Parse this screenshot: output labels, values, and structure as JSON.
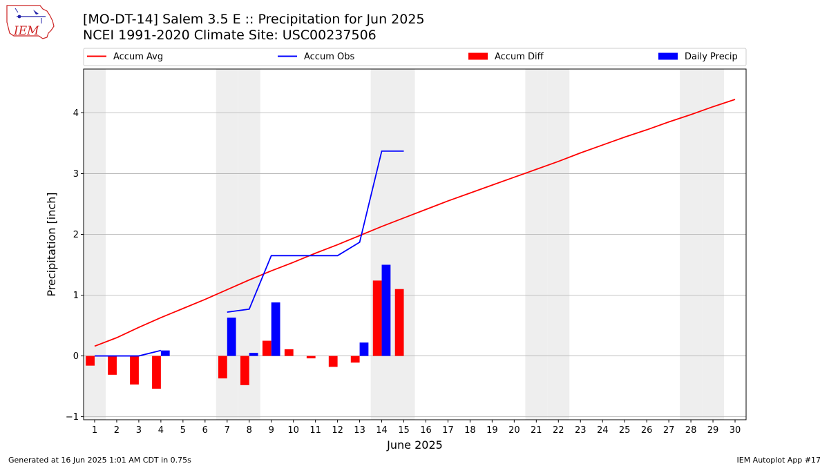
{
  "header": {
    "title_line1": "[MO-DT-14] Salem 3.5 E :: Precipitation for Jun 2025",
    "title_line2": "NCEI 1991-2020 Climate Site: USC00237506"
  },
  "logo": {
    "text": "IEM",
    "color": "#cc2222"
  },
  "footer": {
    "generated": "Generated at 16 Jun 2025 1:01 AM CDT in 0.75s",
    "app": "IEM Autoplot App #17"
  },
  "chart_data": {
    "type": "bar",
    "xlabel": "June 2025",
    "ylabel": "Precipitation [inch]",
    "xlim": [
      0.5,
      30.5
    ],
    "ylim": [
      -1.05,
      4.72
    ],
    "days": [
      1,
      2,
      3,
      4,
      5,
      6,
      7,
      8,
      9,
      10,
      11,
      12,
      13,
      14,
      15,
      16,
      17,
      18,
      19,
      20,
      21,
      22,
      23,
      24,
      25,
      26,
      27,
      28,
      29,
      30
    ],
    "yticks": [
      -1,
      0,
      1,
      2,
      3,
      4
    ],
    "weekend_days": [
      1,
      7,
      8,
      14,
      15,
      21,
      22,
      28,
      29
    ],
    "grid": "horizontal",
    "legend_placement": "top",
    "legend": [
      "Accum Avg",
      "Accum Obs",
      "Accum Diff",
      "Daily Precip"
    ],
    "colors": {
      "avg": "#ff0000",
      "obs": "#0000ff",
      "diff": "#ff0000",
      "daily": "#0000ff",
      "weekend": "#eeeeee",
      "grid": "#b0b0b0"
    },
    "series": [
      {
        "name": "Accum Avg",
        "kind": "line",
        "values": [
          0.16,
          0.3,
          0.47,
          0.63,
          0.78,
          0.93,
          1.09,
          1.25,
          1.4,
          1.54,
          1.69,
          1.83,
          1.98,
          2.13,
          2.27,
          2.41,
          2.55,
          2.68,
          2.81,
          2.94,
          3.07,
          3.2,
          3.34,
          3.47,
          3.6,
          3.72,
          3.85,
          3.97,
          4.1,
          4.22
        ]
      },
      {
        "name": "Accum Obs",
        "kind": "line",
        "values": [
          0.0,
          0.0,
          0.0,
          0.09,
          null,
          null,
          0.72,
          0.77,
          1.65,
          1.65,
          1.65,
          1.65,
          1.87,
          3.37,
          3.37
        ]
      },
      {
        "name": "Accum Diff",
        "kind": "bar",
        "values": [
          -0.16,
          -0.31,
          -0.47,
          -0.54,
          null,
          null,
          -0.37,
          -0.48,
          0.25,
          0.11,
          -0.04,
          -0.18,
          -0.11,
          1.24,
          1.1
        ]
      },
      {
        "name": "Daily Precip",
        "kind": "bar",
        "values": [
          0.0,
          0.0,
          0.0,
          0.09,
          null,
          null,
          0.63,
          0.05,
          0.88,
          0.0,
          0.0,
          0.0,
          0.22,
          1.5,
          0.0
        ]
      }
    ]
  }
}
